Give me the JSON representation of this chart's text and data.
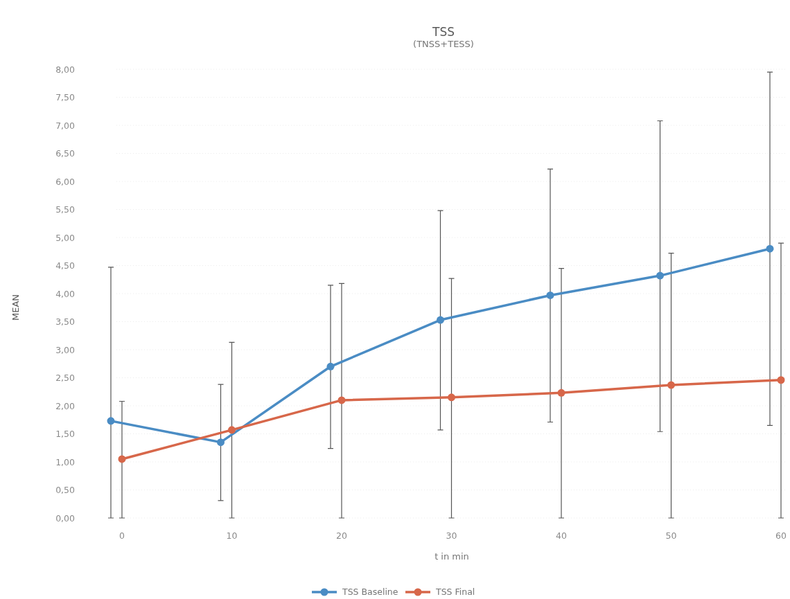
{
  "chart_data": {
    "type": "line",
    "title": "TSS",
    "subtitle": "(TNSS+TESS)",
    "xlabel": "t in min",
    "ylabel": "MEAN",
    "categories": [
      "0",
      "10",
      "20",
      "30",
      "40",
      "50",
      "60"
    ],
    "series": [
      {
        "name": "TSS Baseline",
        "color": "#4a8cc4",
        "values": [
          1.73,
          1.35,
          2.7,
          3.53,
          3.97,
          4.32,
          4.8
        ],
        "errors": [
          [
            0,
            4.47
          ],
          [
            0.31,
            2.38
          ],
          [
            1.24,
            4.15
          ],
          [
            1.57,
            5.48
          ],
          [
            1.71,
            6.22
          ],
          [
            1.54,
            7.08
          ],
          [
            1.65,
            7.95
          ]
        ]
      },
      {
        "name": "TSS Final",
        "color": "#d7674a",
        "values": [
          1.05,
          1.57,
          2.1,
          2.15,
          2.23,
          2.37,
          2.46
        ],
        "errors": [
          [
            0,
            2.08
          ],
          [
            0,
            3.13
          ],
          [
            0,
            4.18
          ],
          [
            0,
            4.27
          ],
          [
            0,
            4.45
          ],
          [
            0,
            4.72
          ],
          [
            0,
            4.9
          ]
        ]
      }
    ],
    "ylim": [
      0,
      8
    ],
    "yticks": [
      {
        "value": 0,
        "label": "0,00"
      },
      {
        "value": 0.5,
        "label": "0,50"
      },
      {
        "value": 1,
        "label": "1,00"
      },
      {
        "value": 1.5,
        "label": "1,50"
      },
      {
        "value": 2,
        "label": "2,00"
      },
      {
        "value": 2.5,
        "label": "2,50"
      },
      {
        "value": 3,
        "label": "3,00"
      },
      {
        "value": 3.5,
        "label": "3,50"
      },
      {
        "value": 4,
        "label": "4,00"
      },
      {
        "value": 4.5,
        "label": "4,50"
      },
      {
        "value": 5,
        "label": "5,00"
      },
      {
        "value": 5.5,
        "label": "5,50"
      },
      {
        "value": 6,
        "label": "6,00"
      },
      {
        "value": 6.5,
        "label": "6,50"
      },
      {
        "value": 7,
        "label": "7,00"
      },
      {
        "value": 7.5,
        "label": "7,50"
      },
      {
        "value": 8,
        "label": "8,00"
      }
    ],
    "legend": "bottom",
    "marker": "circle",
    "grid": "y"
  }
}
